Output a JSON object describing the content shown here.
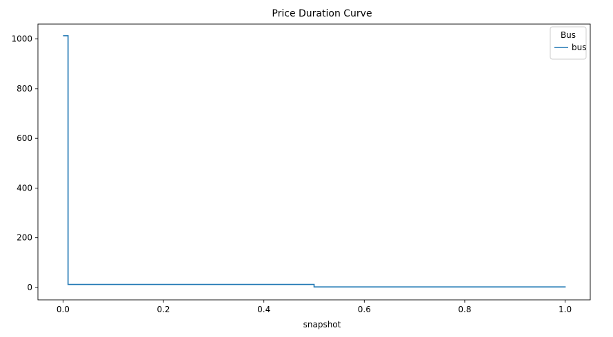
{
  "chart_data": {
    "type": "line",
    "title": "Price Duration Curve",
    "xlabel": "snapshot",
    "ylabel": "",
    "xlim": [
      -0.05,
      1.05
    ],
    "ylim": [
      -50,
      1060
    ],
    "xticks": [
      0.0,
      0.2,
      0.4,
      0.6,
      0.8,
      1.0
    ],
    "xtick_labels": [
      "0.0",
      "0.2",
      "0.4",
      "0.6",
      "0.8",
      "1.0"
    ],
    "yticks": [
      0,
      200,
      400,
      600,
      800,
      1000
    ],
    "ytick_labels": [
      "0",
      "200",
      "400",
      "600",
      "800",
      "1000"
    ],
    "grid": false,
    "legend": {
      "title": "Bus",
      "placement": "top-right"
    },
    "series": [
      {
        "name": "bus",
        "color": "#1f77b4",
        "step": true,
        "x": [
          0.0,
          0.01,
          0.01,
          0.5,
          0.5,
          1.0,
          1.0
        ],
        "y": [
          1013,
          1013,
          12,
          12,
          2,
          2,
          0
        ]
      }
    ]
  }
}
